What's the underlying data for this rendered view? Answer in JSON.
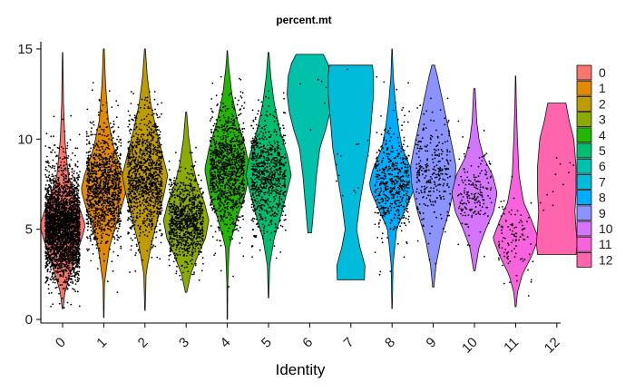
{
  "chart_data": {
    "type": "violin",
    "title": "percent.mt",
    "xlabel": "Identity",
    "ylabel": "",
    "ylim": [
      -0.2,
      15.4
    ],
    "yticks": [
      0,
      5,
      10,
      15
    ],
    "grid": false,
    "legend_position": "right",
    "categories": [
      "0",
      "1",
      "2",
      "3",
      "4",
      "5",
      "6",
      "7",
      "8",
      "9",
      "10",
      "11",
      "12"
    ],
    "colors": [
      "#F8766D",
      "#E18A00",
      "#BE9C00",
      "#8CAB00",
      "#24B700",
      "#00BE70",
      "#00C1AB",
      "#00BBDA",
      "#00ACFC",
      "#8B93FF",
      "#D575FE",
      "#F962DD",
      "#FF65AC"
    ],
    "series": [
      {
        "category": "0",
        "min": 0.6,
        "max": 14.8,
        "median": 5.2,
        "points": 3000,
        "profile": [
          [
            0.6,
            0.02
          ],
          [
            1.5,
            0.1
          ],
          [
            3,
            0.45
          ],
          [
            4.5,
            0.85
          ],
          [
            5.2,
            1.0
          ],
          [
            6,
            0.8
          ],
          [
            7,
            0.5
          ],
          [
            8,
            0.25
          ],
          [
            10,
            0.1
          ],
          [
            12,
            0.04
          ],
          [
            14.8,
            0.01
          ]
        ]
      },
      {
        "category": "1",
        "min": 0.1,
        "max": 15.0,
        "median": 7.2,
        "points": 1200,
        "profile": [
          [
            0.1,
            0.01
          ],
          [
            2,
            0.03
          ],
          [
            4,
            0.25
          ],
          [
            5.5,
            0.6
          ],
          [
            6.5,
            0.85
          ],
          [
            7.2,
            1.0
          ],
          [
            8,
            0.85
          ],
          [
            9.5,
            0.45
          ],
          [
            11,
            0.2
          ],
          [
            13,
            0.08
          ],
          [
            15,
            0.02
          ]
        ]
      },
      {
        "category": "2",
        "min": 0.5,
        "max": 15.0,
        "median": 7.8,
        "points": 1100,
        "profile": [
          [
            0.5,
            0.01
          ],
          [
            2.5,
            0.05
          ],
          [
            4,
            0.25
          ],
          [
            5.5,
            0.55
          ],
          [
            7,
            0.85
          ],
          [
            8,
            1.0
          ],
          [
            9,
            0.8
          ],
          [
            10.5,
            0.5
          ],
          [
            12,
            0.25
          ],
          [
            13.5,
            0.1
          ],
          [
            15,
            0.02
          ]
        ]
      },
      {
        "category": "3",
        "min": 1.5,
        "max": 11.5,
        "median": 5.5,
        "points": 900,
        "profile": [
          [
            1.5,
            0.03
          ],
          [
            2.5,
            0.2
          ],
          [
            3.5,
            0.5
          ],
          [
            4.5,
            0.85
          ],
          [
            5.5,
            1.0
          ],
          [
            6.5,
            0.8
          ],
          [
            7.5,
            0.5
          ],
          [
            8.5,
            0.3
          ],
          [
            10,
            0.12
          ],
          [
            11.5,
            0.02
          ]
        ]
      },
      {
        "category": "4",
        "min": 0.0,
        "max": 14.9,
        "median": 8.3,
        "points": 1100,
        "profile": [
          [
            0,
            0.01
          ],
          [
            2,
            0.02
          ],
          [
            4,
            0.08
          ],
          [
            5.5,
            0.4
          ],
          [
            7,
            0.8
          ],
          [
            8.3,
            1.0
          ],
          [
            9.5,
            0.8
          ],
          [
            11,
            0.45
          ],
          [
            12.5,
            0.2
          ],
          [
            14,
            0.06
          ],
          [
            14.9,
            0.01
          ]
        ]
      },
      {
        "category": "5",
        "min": 1.2,
        "max": 14.8,
        "median": 8.0,
        "points": 800,
        "profile": [
          [
            1.2,
            0.01
          ],
          [
            3,
            0.05
          ],
          [
            4.5,
            0.25
          ],
          [
            6,
            0.6
          ],
          [
            7.5,
            0.9
          ],
          [
            8,
            1.0
          ],
          [
            9,
            0.85
          ],
          [
            10.5,
            0.5
          ],
          [
            12,
            0.25
          ],
          [
            13.5,
            0.1
          ],
          [
            14.8,
            0.02
          ]
        ]
      },
      {
        "category": "6",
        "min": 4.8,
        "max": 14.7,
        "median": 12.5,
        "points": 6,
        "profile": [
          [
            4.8,
            0.08
          ],
          [
            6.5,
            0.2
          ],
          [
            8,
            0.3
          ],
          [
            9.5,
            0.45
          ],
          [
            10.5,
            0.7
          ],
          [
            11.5,
            0.9
          ],
          [
            12.5,
            1.0
          ],
          [
            13.5,
            0.95
          ],
          [
            14.2,
            0.8
          ],
          [
            14.7,
            0.6
          ]
        ]
      },
      {
        "category": "7",
        "min": 2.2,
        "max": 14.1,
        "median": 9.0,
        "points": 14,
        "profile": [
          [
            2.2,
            0.6
          ],
          [
            3,
            0.62
          ],
          [
            4,
            0.4
          ],
          [
            5,
            0.25
          ],
          [
            6.5,
            0.4
          ],
          [
            8,
            0.6
          ],
          [
            9.5,
            0.8
          ],
          [
            11,
            0.9
          ],
          [
            12.5,
            1.0
          ],
          [
            13.5,
            1.0
          ],
          [
            14.1,
            0.95
          ]
        ]
      },
      {
        "category": "8",
        "min": 0.6,
        "max": 15.0,
        "median": 7.5,
        "points": 500,
        "profile": [
          [
            0.6,
            0.01
          ],
          [
            3,
            0.04
          ],
          [
            5,
            0.2
          ],
          [
            6,
            0.55
          ],
          [
            7,
            0.9
          ],
          [
            7.5,
            1.0
          ],
          [
            8.3,
            0.85
          ],
          [
            9.5,
            0.45
          ],
          [
            10.5,
            0.3
          ],
          [
            12,
            0.15
          ],
          [
            13.5,
            0.05
          ],
          [
            15,
            0.01
          ]
        ]
      },
      {
        "category": "9",
        "min": 1.8,
        "max": 14.1,
        "median": 8.3,
        "points": 280,
        "profile": [
          [
            1.8,
            0.03
          ],
          [
            3,
            0.12
          ],
          [
            4.5,
            0.35
          ],
          [
            6,
            0.7
          ],
          [
            7.5,
            0.95
          ],
          [
            8.5,
            1.0
          ],
          [
            9.5,
            0.85
          ],
          [
            11,
            0.6
          ],
          [
            12.5,
            0.35
          ],
          [
            13.5,
            0.18
          ],
          [
            14.1,
            0.06
          ]
        ]
      },
      {
        "category": "10",
        "min": 2.7,
        "max": 12.8,
        "median": 7.0,
        "points": 180,
        "profile": [
          [
            2.7,
            0.03
          ],
          [
            4,
            0.2
          ],
          [
            5,
            0.5
          ],
          [
            6,
            0.85
          ],
          [
            7,
            1.0
          ],
          [
            8,
            0.8
          ],
          [
            9,
            0.4
          ],
          [
            10,
            0.2
          ],
          [
            11,
            0.1
          ],
          [
            12.8,
            0.03
          ]
        ]
      },
      {
        "category": "11",
        "min": 0.7,
        "max": 13.5,
        "median": 4.5,
        "points": 110,
        "profile": [
          [
            0.7,
            0.02
          ],
          [
            1.5,
            0.08
          ],
          [
            2.5,
            0.3
          ],
          [
            3.5,
            0.7
          ],
          [
            4.5,
            1.0
          ],
          [
            5.5,
            0.7
          ],
          [
            6.5,
            0.35
          ],
          [
            8,
            0.15
          ],
          [
            10,
            0.08
          ],
          [
            12,
            0.03
          ],
          [
            13.5,
            0.01
          ]
        ]
      },
      {
        "category": "12",
        "min": 3.6,
        "max": 12.0,
        "median": 7.5,
        "points": 12,
        "profile": [
          [
            3.6,
            0.85
          ],
          [
            4.2,
            0.9
          ],
          [
            5,
            0.85
          ],
          [
            6,
            0.8
          ],
          [
            7,
            0.85
          ],
          [
            8.5,
            0.85
          ],
          [
            10,
            0.75
          ],
          [
            11,
            0.55
          ],
          [
            12,
            0.4
          ]
        ]
      }
    ]
  }
}
